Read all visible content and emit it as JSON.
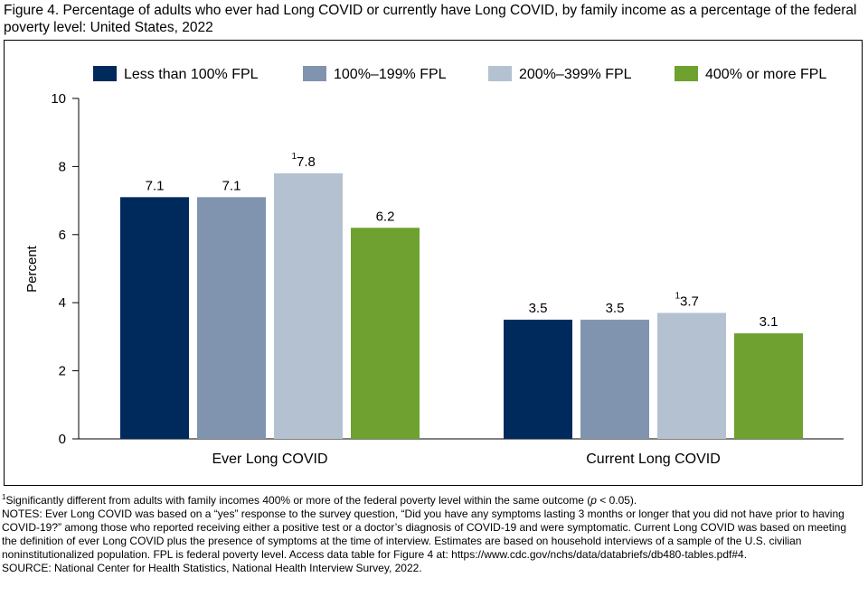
{
  "title": "Figure 4. Percentage of adults who ever had Long COVID or currently have Long COVID, by family income as a percentage of the federal poverty level: United States, 2022",
  "chart_data": {
    "type": "bar",
    "categories": [
      "Ever Long COVID",
      "Current Long COVID"
    ],
    "series": [
      {
        "name": "Less than 100% FPL",
        "color": "#002a5c",
        "values": [
          7.1,
          3.5
        ],
        "labels": [
          "7.1",
          "3.5"
        ],
        "footnote": [
          "",
          ""
        ]
      },
      {
        "name": "100%–199% FPL",
        "color": "#8194af",
        "values": [
          7.1,
          3.5
        ],
        "labels": [
          "7.1",
          "3.5"
        ],
        "footnote": [
          "",
          ""
        ]
      },
      {
        "name": "200%–399% FPL",
        "color": "#b4c1d1",
        "values": [
          7.8,
          3.7
        ],
        "labels": [
          "7.8",
          "3.7"
        ],
        "footnote": [
          "1",
          "1"
        ]
      },
      {
        "name": "400% or more FPL",
        "color": "#6ea12f",
        "values": [
          6.2,
          3.1
        ],
        "labels": [
          "6.2",
          "3.1"
        ],
        "footnote": [
          "",
          ""
        ]
      }
    ],
    "ylabel": "Percent",
    "ylim": [
      0,
      10
    ],
    "yticks": [
      0,
      2,
      4,
      6,
      8,
      10
    ],
    "grid": false,
    "legend": "top"
  },
  "notes": {
    "footnote_marker": "1",
    "footnote_pre": "Significantly different from adults with family incomes 400% or more of the federal poverty level within the same outcome (",
    "footnote_p": "p",
    "footnote_post": " < 0.05).",
    "notes_text": "NOTES: Ever Long COVID was based on a “yes” response to the survey question, “Did you have any symptoms lasting 3 months or longer that you did not have prior to having COVID-19?” among those who reported receiving either a positive test or a doctor’s diagnosis of COVID-19 and were symptomatic. Current Long COVID was based on meeting the definition of ever Long COVID plus the presence of symptoms at the time of interview. Estimates are based on household interviews of a sample of the U.S. civilian noninstitutionalized population. FPL is federal poverty level. Access data table for Figure 4 at: https://www.cdc.gov/nchs/data/databriefs/db480-tables.pdf#4.",
    "source": "SOURCE: National Center for Health Statistics, National Health Interview Survey, 2022."
  }
}
